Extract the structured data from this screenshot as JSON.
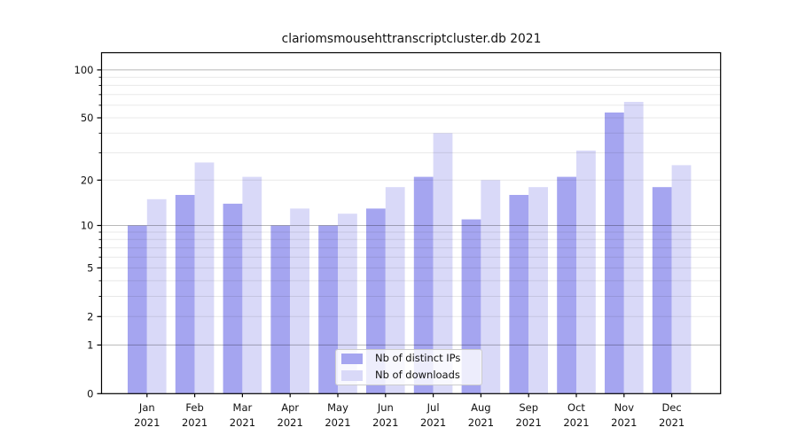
{
  "chart_data": {
    "type": "bar",
    "title": "clariomsmousehttranscriptcluster.db 2021",
    "categories": [
      "Jan",
      "Feb",
      "Mar",
      "Apr",
      "May",
      "Jun",
      "Jul",
      "Aug",
      "Sep",
      "Oct",
      "Nov",
      "Dec"
    ],
    "year_label": "2021",
    "series": [
      {
        "name": "Nb of distinct IPs",
        "color": "#a5a5f0",
        "values": [
          10,
          16,
          14,
          10,
          10,
          13,
          21,
          11,
          16,
          21,
          54,
          18
        ]
      },
      {
        "name": "Nb of downloads",
        "color": "#d9d9f8",
        "values": [
          15,
          26,
          21,
          13,
          12,
          18,
          40,
          20,
          18,
          31,
          63,
          25
        ]
      }
    ],
    "yscale": "log1p",
    "ylim": [
      0,
      128
    ],
    "ytick_labels": [
      0,
      1,
      2,
      5,
      10,
      20,
      50,
      100
    ],
    "grid_major": [
      1,
      10,
      100
    ],
    "grid_minor": [
      2,
      3,
      4,
      5,
      6,
      7,
      8,
      9,
      20,
      30,
      40,
      50,
      60,
      70,
      80,
      90
    ],
    "grid": true,
    "legend_position": "lower center",
    "axis_color": "#000000",
    "grid_major_color": "rgba(0,0,0,0.28)",
    "grid_minor_color": "rgba(0,0,0,0.09)"
  }
}
